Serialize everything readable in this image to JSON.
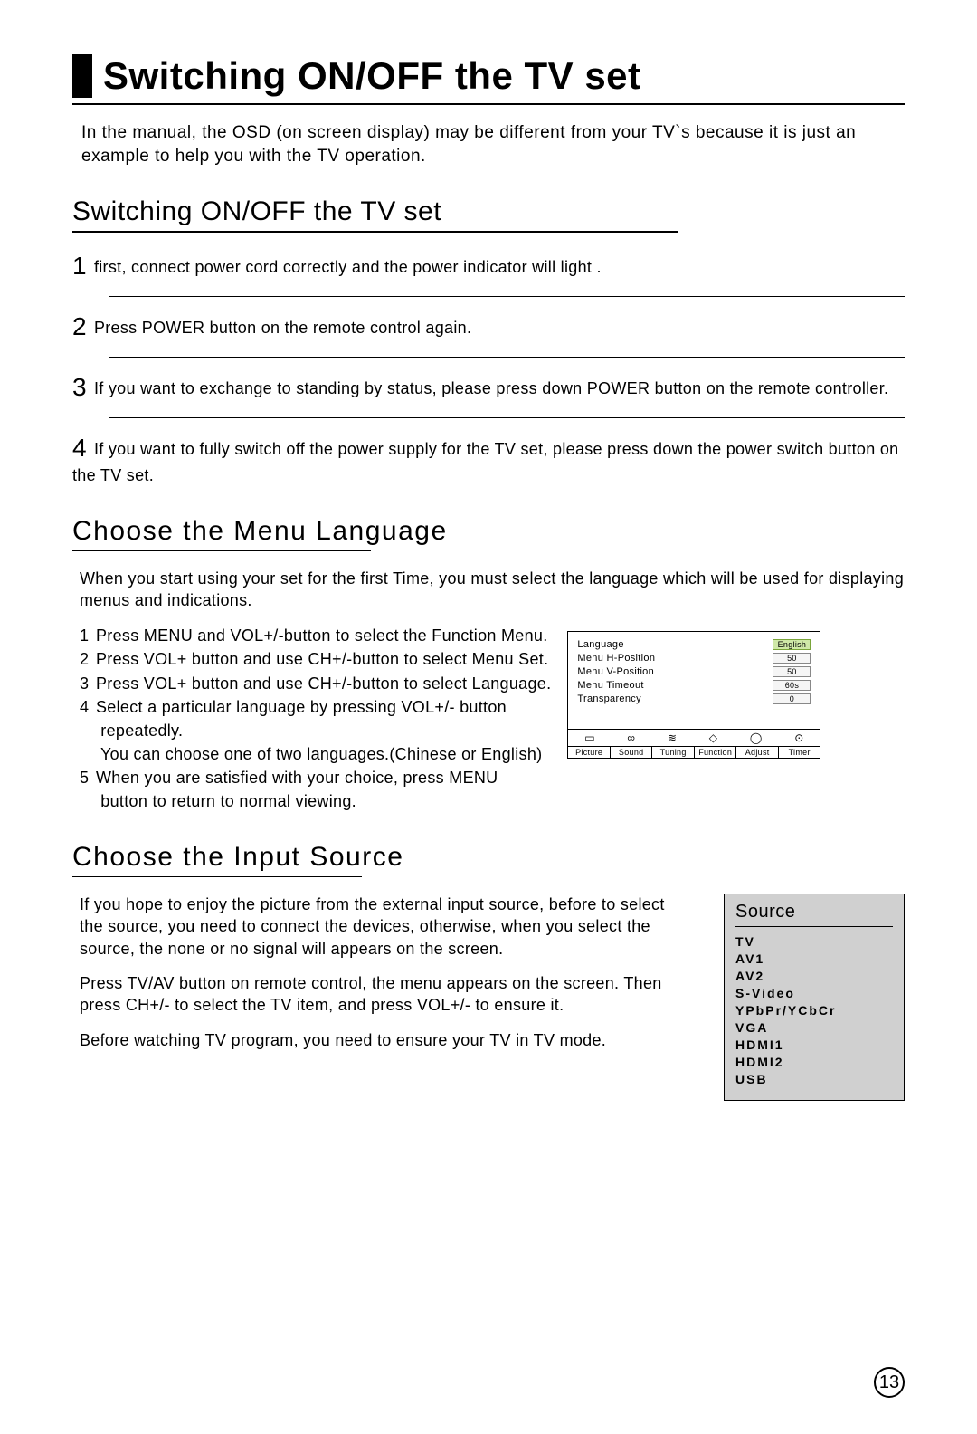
{
  "page": {
    "main_title": "Switching ON/OFF the TV set",
    "intro": "In the manual, the OSD  (on screen display) may be different from your TV`s because it is just an example to help you  with the TV operation.",
    "page_number": "13"
  },
  "switching": {
    "title": "Switching ON/OFF the TV set",
    "steps": [
      {
        "num": "1",
        "text": "first, connect power cord correctly and the power indicator will light ."
      },
      {
        "num": "2",
        "text": "Press POWER button  on the remote control again."
      },
      {
        "num": "3",
        "text": "If you want to exchange to standing by status, please press down POWER button on the remote controller."
      },
      {
        "num": "4",
        "text": "If you want to fully switch off  the  power supply for the TV set, please press down the power switch button on the TV set."
      }
    ]
  },
  "language": {
    "title": "Choose the Menu Language",
    "intro": "When you start using your set for the first Time, you must select the language which will be used for displaying menus and indications.",
    "items": [
      {
        "n": "1",
        "text": "Press MENU and VOL+/-button to select the Function Menu."
      },
      {
        "n": "2",
        "text": "Press VOL+ button and use CH+/-button to select Menu Set."
      },
      {
        "n": "3",
        "text": "Press VOL+ button and use CH+/-button to select Language."
      },
      {
        "n": "4",
        "text": "Select a particular language by pressing VOL+/- button"
      },
      {
        "n": "",
        "text": "  repeatedly."
      },
      {
        "n": "",
        "text": "  You can choose one of two languages.(Chinese or English)"
      },
      {
        "n": "5",
        "text": "When you are satisfied with your choice, press MENU"
      },
      {
        "n": "",
        "text": "  button to return to normal viewing."
      }
    ],
    "osd": {
      "rows": [
        {
          "label": "Language",
          "value": "English",
          "hl": true
        },
        {
          "label": "Menu H-Position",
          "value": "50",
          "hl": false
        },
        {
          "label": "Menu V-Position",
          "value": "50",
          "hl": false
        },
        {
          "label": "Menu Timeout",
          "value": "60s",
          "hl": false
        },
        {
          "label": "Transparency",
          "value": "0",
          "hl": false
        }
      ],
      "tabs": [
        "Picture",
        "Sound",
        "Tuning",
        "Function",
        "Adjust",
        "Timer"
      ]
    }
  },
  "source": {
    "title": "Choose the Input Source",
    "p1": "If you hope to enjoy the picture from the external input source, before to select the source, you need to connect the devices, otherwise, when you select the source, the none or no signal will appears on the screen.",
    "p2": "Press TV/AV button on remote control,  the menu appears on the screen. Then press CH+/- to select the TV item, and press VOL+/- to ensure it.",
    "p3": "Before watching TV program, you need  to  ensure your TV in TV mode.",
    "box_title": "Source",
    "items": [
      "TV",
      "AV1",
      "AV2",
      "S-Video",
      "YPbPr/YCbCr",
      "VGA",
      "HDMI1",
      "HDMI2",
      "USB"
    ]
  },
  "colors": {
    "text": "#000000",
    "background": "#ffffff",
    "source_box_bg": "#d0d0d0",
    "osd_highlight": "#cfe8a8"
  }
}
